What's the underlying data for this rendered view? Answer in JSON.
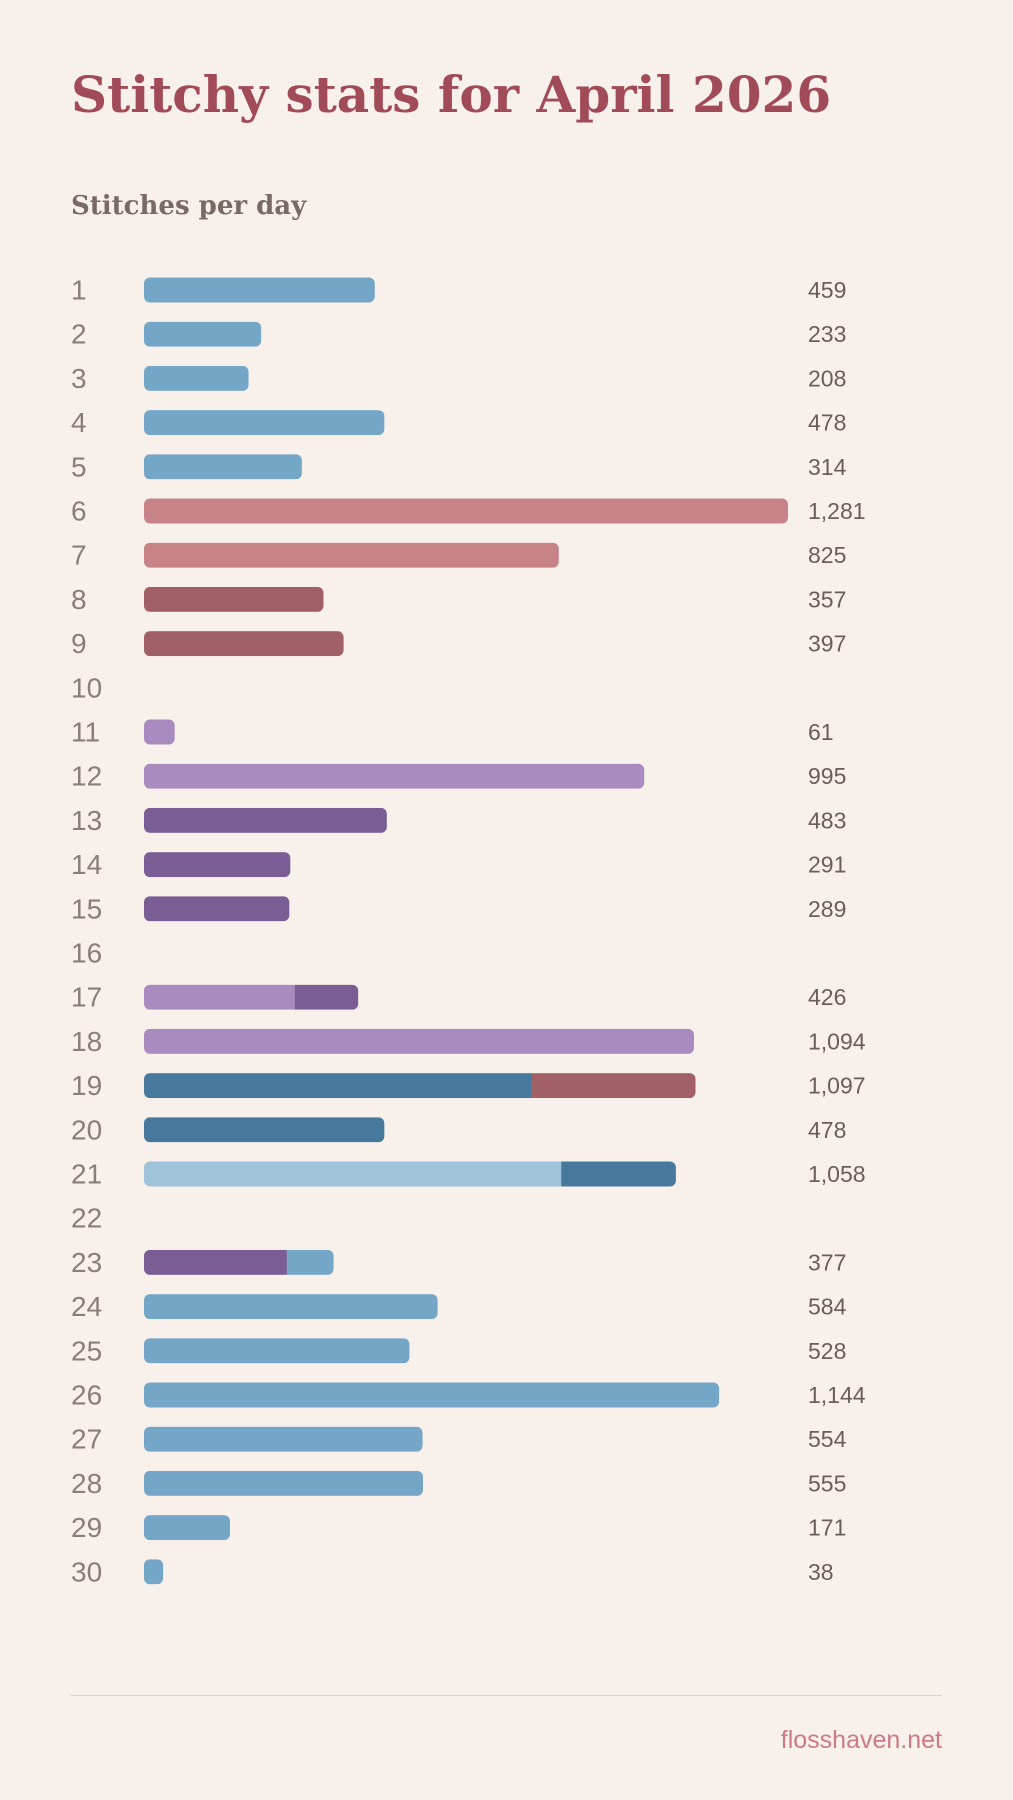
{
  "title": "Stitchy stats for April 2026",
  "footer": "flosshaven.net",
  "chart_data": {
    "type": "bar",
    "orientation": "horizontal",
    "stacked": true,
    "title": "Stitchy stats for April 2026",
    "subtitle": "Stitches per day",
    "xlim": [
      0,
      1281
    ],
    "grid": false,
    "legend": "none",
    "colors": {
      "light_blue": "#73a6c7",
      "pale_blue": "#a0c3d9",
      "steel_blue": "#47799c",
      "pink": "#c78388",
      "maroon": "#a15f66",
      "lavender": "#a98bbf",
      "purple": "#7a5d94"
    },
    "categories": [
      "1",
      "2",
      "3",
      "4",
      "5",
      "6",
      "7",
      "8",
      "9",
      "10",
      "11",
      "12",
      "13",
      "14",
      "15",
      "16",
      "17",
      "18",
      "19",
      "20",
      "21",
      "22",
      "23",
      "24",
      "25",
      "26",
      "27",
      "28",
      "29",
      "30"
    ],
    "totals": [
      "459",
      "233",
      "208",
      "478",
      "314",
      "1,281",
      "825",
      "357",
      "397",
      "",
      "61",
      "995",
      "483",
      "291",
      "289",
      "",
      "426",
      "1,094",
      "1,097",
      "478",
      "1,058",
      "",
      "377",
      "584",
      "528",
      "1,144",
      "554",
      "555",
      "171",
      "38"
    ],
    "segments": [
      [
        {
          "value": 459,
          "color": "light_blue"
        }
      ],
      [
        {
          "value": 233,
          "color": "light_blue"
        }
      ],
      [
        {
          "value": 208,
          "color": "light_blue"
        }
      ],
      [
        {
          "value": 478,
          "color": "light_blue"
        }
      ],
      [
        {
          "value": 314,
          "color": "light_blue"
        }
      ],
      [
        {
          "value": 1281,
          "color": "pink"
        }
      ],
      [
        {
          "value": 825,
          "color": "pink"
        }
      ],
      [
        {
          "value": 357,
          "color": "maroon"
        }
      ],
      [
        {
          "value": 397,
          "color": "maroon"
        }
      ],
      [],
      [
        {
          "value": 61,
          "color": "lavender"
        }
      ],
      [
        {
          "value": 995,
          "color": "lavender"
        }
      ],
      [
        {
          "value": 483,
          "color": "purple"
        }
      ],
      [
        {
          "value": 291,
          "color": "purple"
        }
      ],
      [
        {
          "value": 289,
          "color": "purple"
        }
      ],
      [],
      [
        {
          "value": 300,
          "color": "lavender"
        },
        {
          "value": 126,
          "color": "purple"
        }
      ],
      [
        {
          "value": 1094,
          "color": "lavender"
        }
      ],
      [
        {
          "value": 770,
          "color": "steel_blue"
        },
        {
          "value": 327,
          "color": "maroon"
        }
      ],
      [
        {
          "value": 478,
          "color": "steel_blue"
        }
      ],
      [
        {
          "value": 830,
          "color": "pale_blue"
        },
        {
          "value": 228,
          "color": "steel_blue"
        }
      ],
      [],
      [
        {
          "value": 284,
          "color": "purple"
        },
        {
          "value": 93,
          "color": "light_blue"
        }
      ],
      [
        {
          "value": 584,
          "color": "light_blue"
        }
      ],
      [
        {
          "value": 528,
          "color": "light_blue"
        }
      ],
      [
        {
          "value": 1144,
          "color": "light_blue"
        }
      ],
      [
        {
          "value": 554,
          "color": "light_blue"
        }
      ],
      [
        {
          "value": 555,
          "color": "light_blue"
        }
      ],
      [
        {
          "value": 171,
          "color": "light_blue"
        }
      ],
      [
        {
          "value": 38,
          "color": "light_blue"
        }
      ]
    ]
  }
}
